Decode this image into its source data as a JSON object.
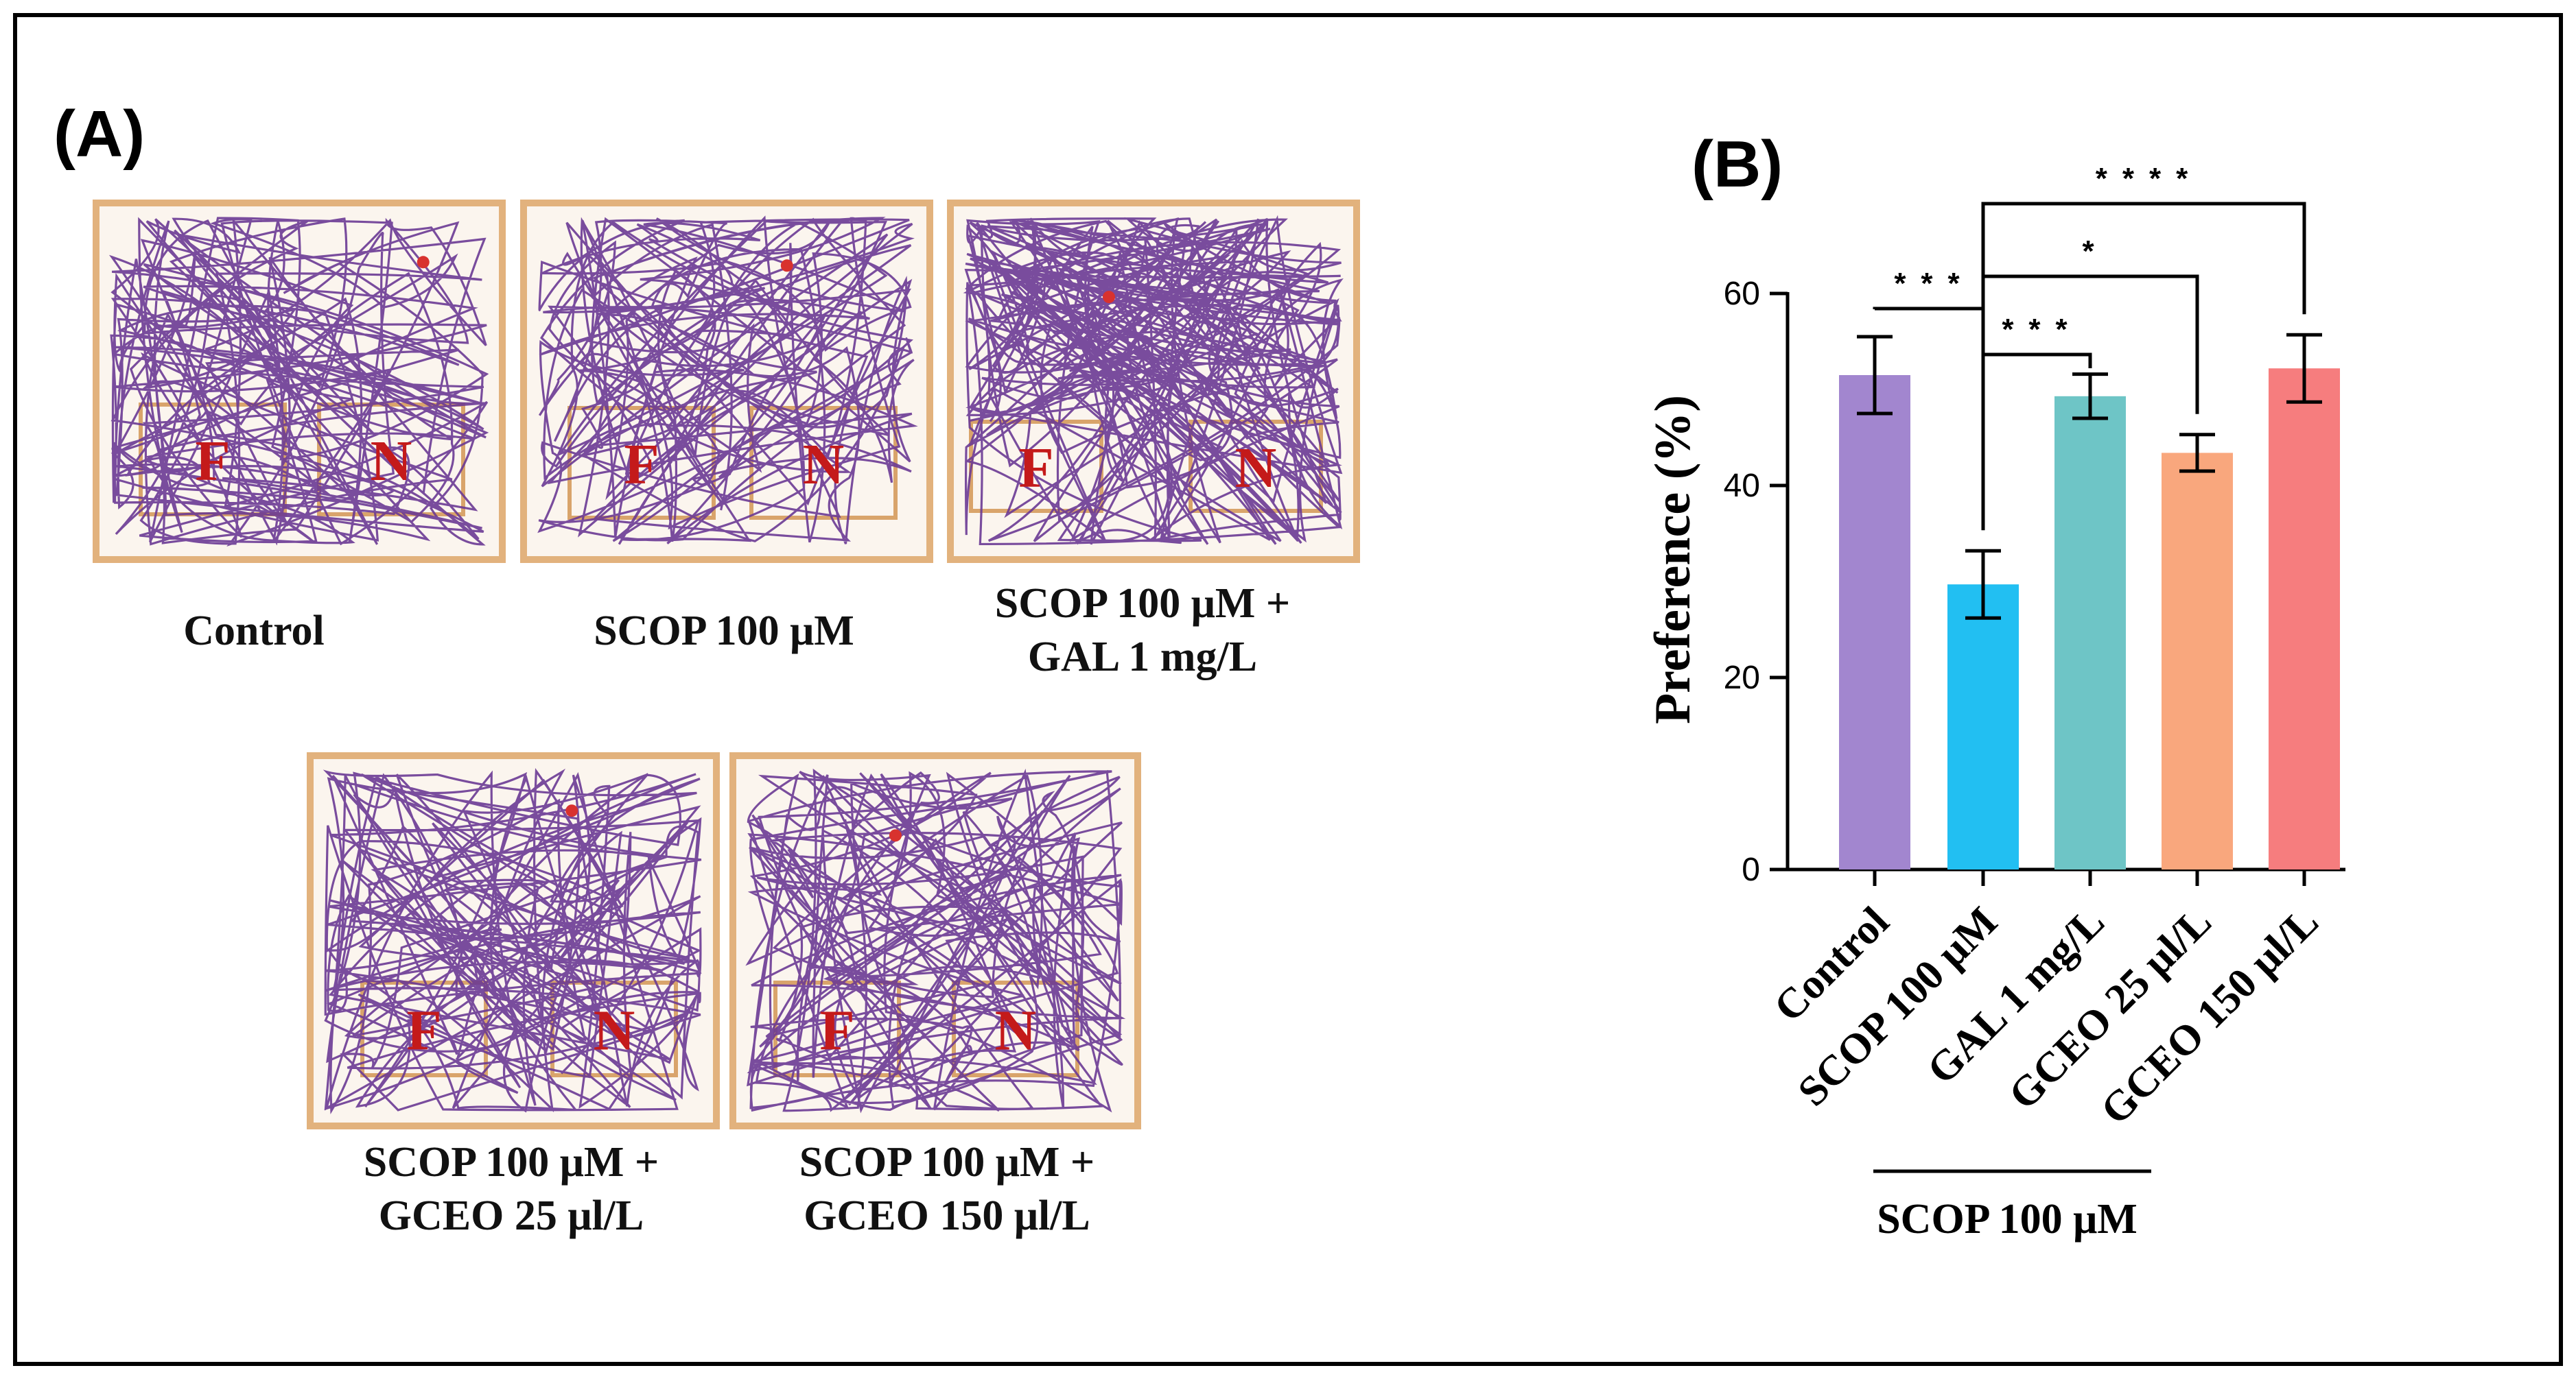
{
  "panel_a": {
    "label": "(A)",
    "zone_labels": {
      "familiar": "F",
      "novel": "N"
    },
    "arenas": [
      {
        "id": "control",
        "caption_lines": [
          "Control"
        ]
      },
      {
        "id": "scop",
        "caption_lines": [
          "SCOP 100 μM"
        ]
      },
      {
        "id": "scop-gal",
        "caption_lines": [
          "SCOP 100 μM +",
          "GAL 1 mg/L"
        ]
      },
      {
        "id": "scop-gceo25",
        "caption_lines": [
          "SCOP 100 μM +",
          "GCEO 25 μl/L"
        ]
      },
      {
        "id": "scop-gceo150",
        "caption_lines": [
          "SCOP 100 μM +",
          "GCEO 150 μl/L"
        ]
      }
    ],
    "colors": {
      "track": "#6a3a94",
      "border": "#e2b27d",
      "fill": "#fbf5ee",
      "zone_border": "#d9a46b",
      "zone_text": "#c41a1a"
    }
  },
  "panel_b": {
    "label": "(B)",
    "group_label": "SCOP 100 μM"
  },
  "chart_data": {
    "type": "bar",
    "title": "",
    "xlabel": "",
    "ylabel": "Preference (%)",
    "ylim": [
      0,
      60
    ],
    "yticks": [
      0,
      20,
      40,
      60
    ],
    "categories": [
      "Control",
      "SCOP 100 μM",
      "GAL 1 mg/L",
      "GCEO 25 μl/L",
      "GCEO 150 μl/L"
    ],
    "values": [
      51.5,
      29.7,
      49.3,
      43.4,
      52.2
    ],
    "errors": [
      4.0,
      3.5,
      2.3,
      1.9,
      3.5
    ],
    "colors": [
      "#a286cf",
      "#22bff2",
      "#6ec5c6",
      "#f9a77d",
      "#f67d7e"
    ],
    "significance": [
      {
        "from": "Control",
        "to": "SCOP 100 μM",
        "label": "***"
      },
      {
        "from": "SCOP 100 μM",
        "to": "GAL 1 mg/L",
        "label": "***"
      },
      {
        "from": "SCOP 100 μM",
        "to": "GCEO 25 μl/L",
        "label": "*"
      },
      {
        "from": "SCOP 100 μM",
        "to": "GCEO 150 μl/L",
        "label": "****"
      }
    ],
    "legend": "none",
    "grid": false
  }
}
